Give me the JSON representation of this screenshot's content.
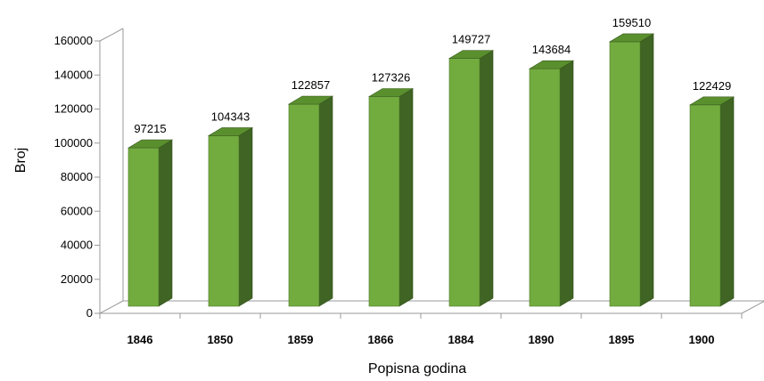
{
  "chart_data": {
    "type": "bar",
    "style": "3d-column",
    "categories": [
      "1846",
      "1850",
      "1859",
      "1866",
      "1884",
      "1890",
      "1895",
      "1900"
    ],
    "values": [
      97215,
      104343,
      122857,
      127326,
      149727,
      143684,
      159510,
      122429
    ],
    "data_labels": [
      "97215",
      "104343",
      "122857",
      "127326",
      "149727",
      "143684",
      "159510",
      "122429"
    ],
    "xlabel": "Popisna godina",
    "ylabel": "Broj",
    "ylim": [
      0,
      160000
    ],
    "yticks": [
      0,
      20000,
      40000,
      60000,
      80000,
      100000,
      120000,
      140000,
      160000
    ],
    "ytick_labels": [
      "0",
      "20000",
      "40000",
      "60000",
      "80000",
      "100000",
      "120000",
      "140000",
      "160000"
    ],
    "grid": false,
    "legend": "none",
    "colors": {
      "front": "#72AC3F",
      "side": "#3F6423",
      "top": "#5A8F2E"
    }
  }
}
